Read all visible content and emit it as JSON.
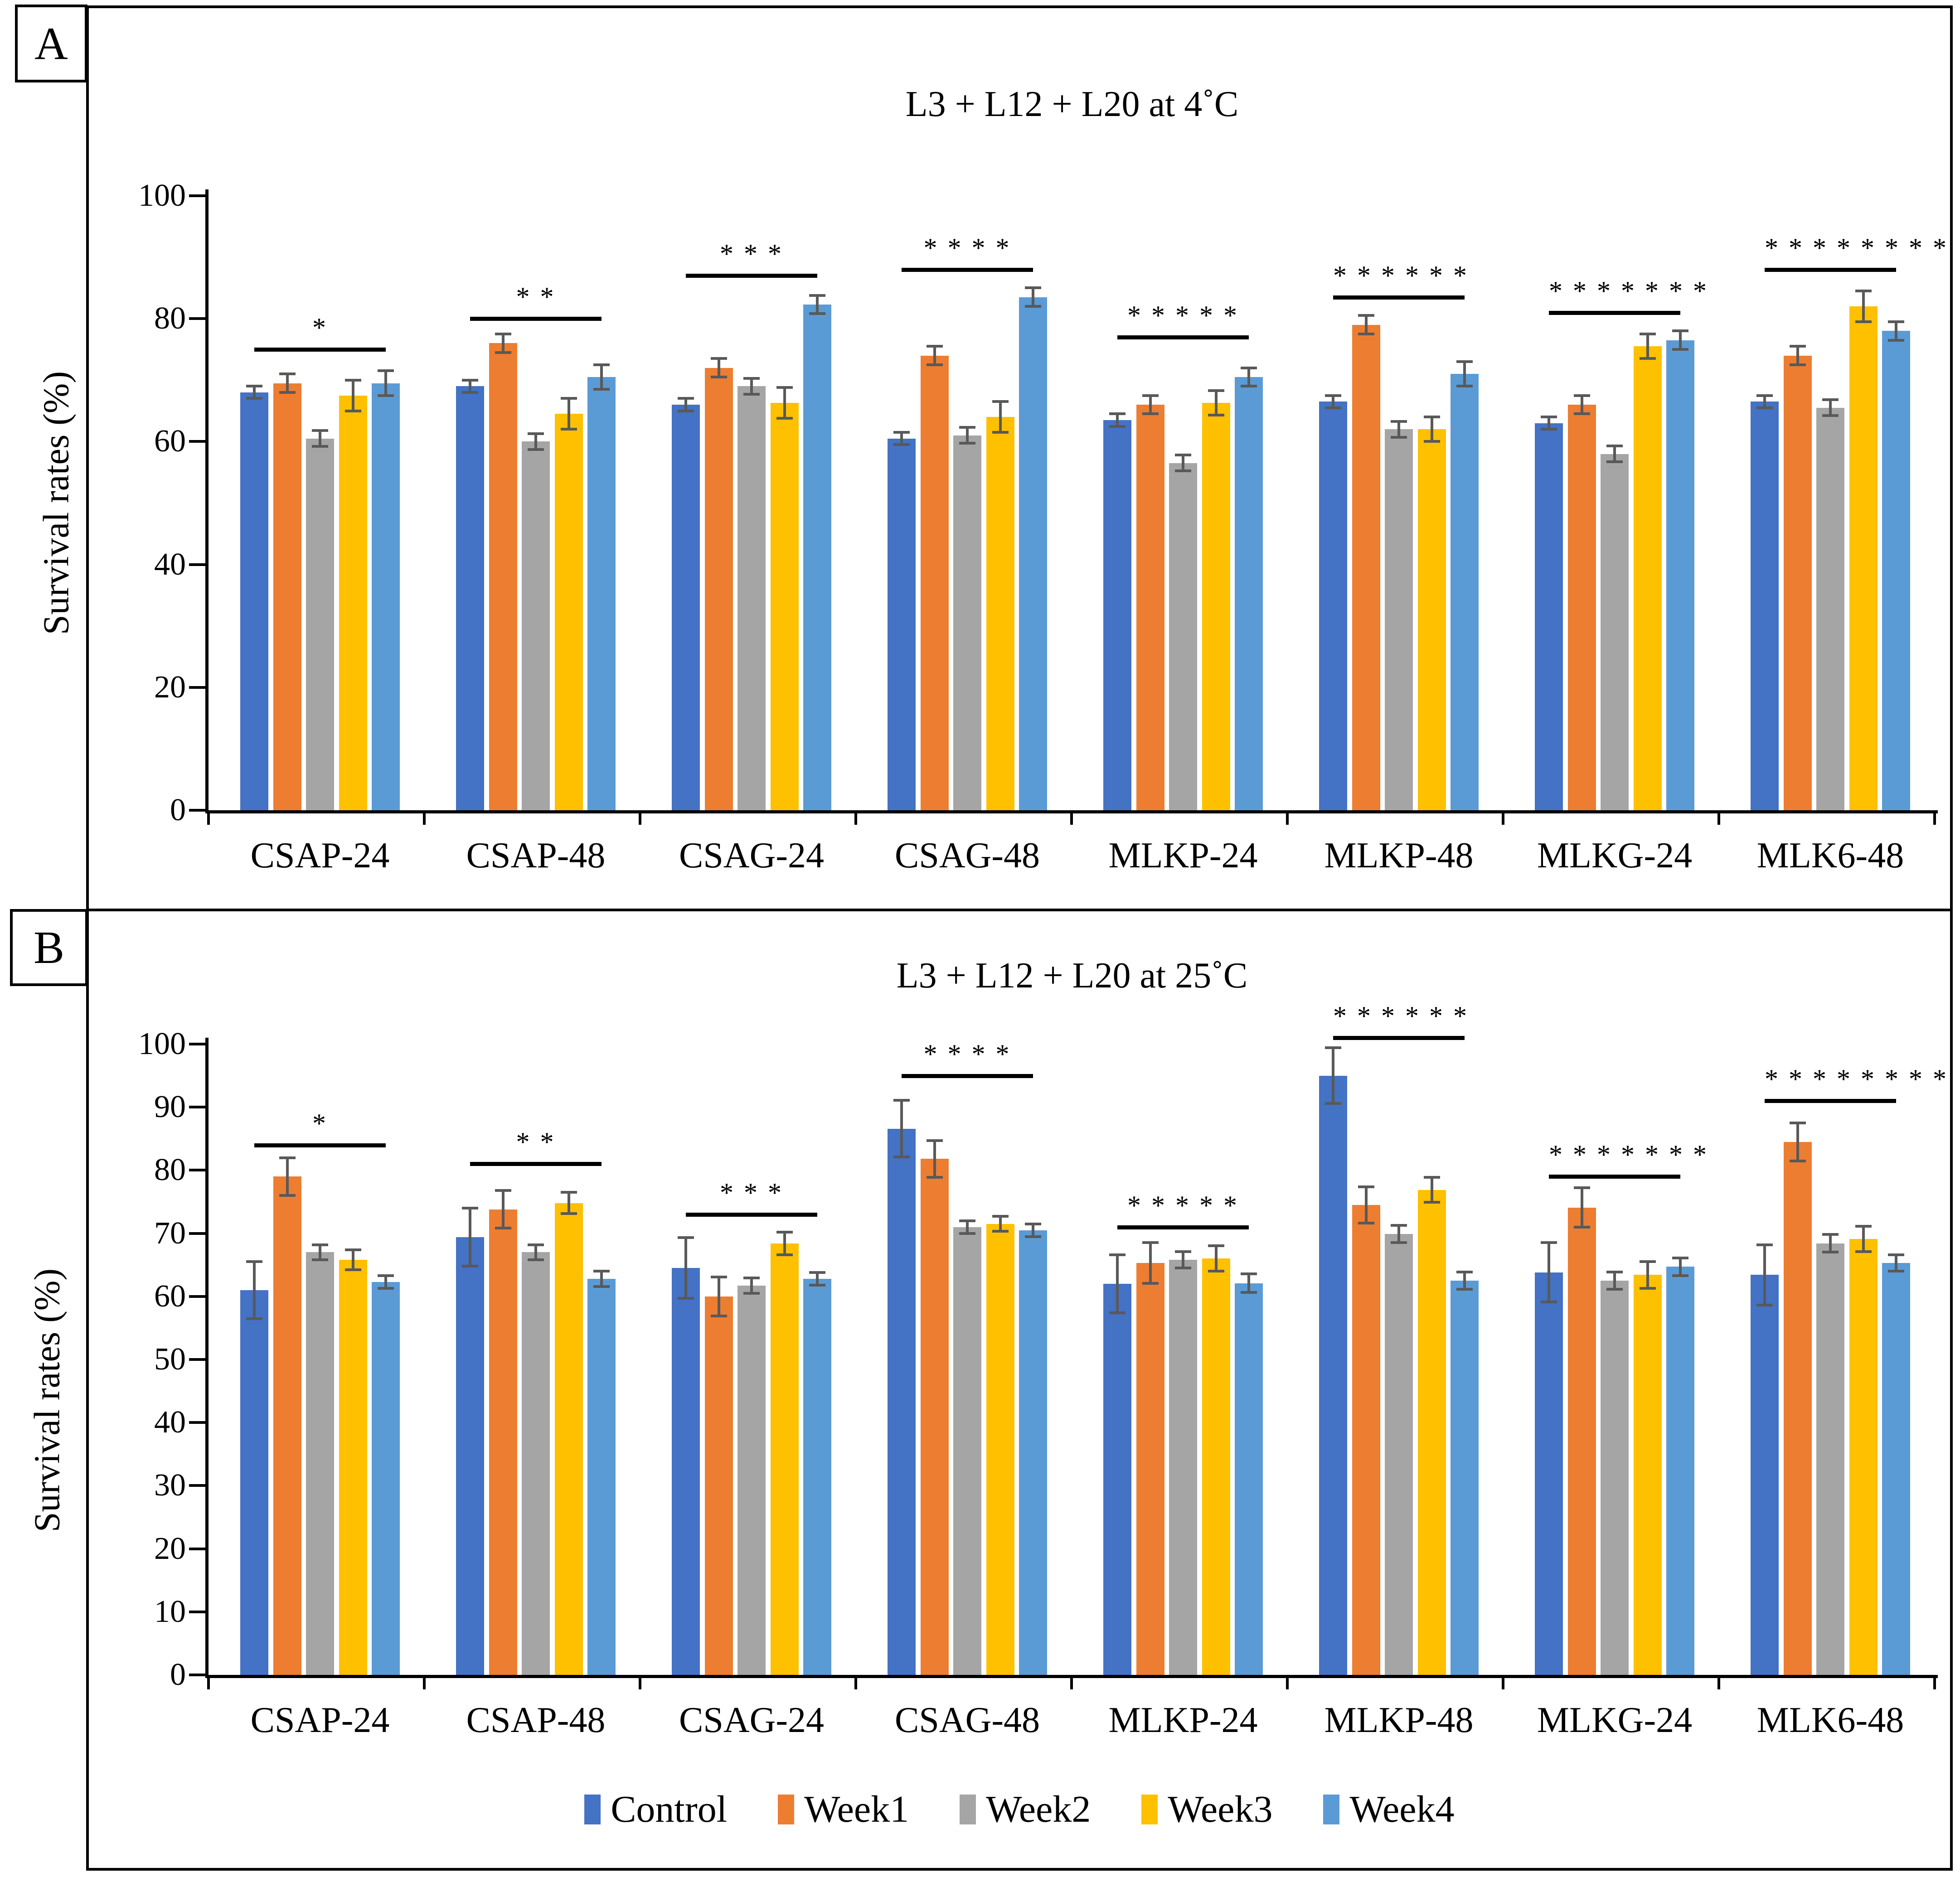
{
  "figure": {
    "panel_a_label": "A",
    "panel_b_label": "B"
  },
  "legend": {
    "items": [
      {
        "label": "Control",
        "color": "#4472C4"
      },
      {
        "label": "Week1",
        "color": "#ED7D31"
      },
      {
        "label": "Week2",
        "color": "#A5A5A5"
      },
      {
        "label": "Week3",
        "color": "#FFC000"
      },
      {
        "label": "Week4",
        "color": "#5B9BD5"
      }
    ]
  },
  "colors": {
    "control": "#4472C4",
    "week1": "#ED7D31",
    "week2": "#A5A5A5",
    "week3": "#FFC000",
    "week4": "#5B9BD5",
    "error_bar": "#595959",
    "axis": "#000000"
  },
  "chart_data": [
    {
      "id": "A",
      "panel_label": "A",
      "type": "bar",
      "title": "L3 + L12 + L20 at 4˚C",
      "ylabel": "Survival rates (%)",
      "xlabel": "",
      "ylim": [
        0,
        100
      ],
      "ytick_step": 20,
      "grid": false,
      "legend_position": "none",
      "categories": [
        "CSAP-24",
        "CSAP-48",
        "CSAG-24",
        "CSAG-48",
        "MLKP-24",
        "MLKP-48",
        "MLKG-24",
        "MLK6-48"
      ],
      "series": [
        {
          "name": "Control",
          "color": "#4472C4",
          "values": [
            68,
            69,
            66,
            60.5,
            63.5,
            66.5,
            63,
            66.5
          ],
          "errors": [
            1,
            1,
            1,
            1,
            1,
            1,
            1,
            1
          ]
        },
        {
          "name": "Week1",
          "color": "#ED7D31",
          "values": [
            69.5,
            76,
            72,
            74,
            66,
            79,
            66,
            74
          ],
          "errors": [
            1.5,
            1.5,
            1.5,
            1.5,
            1.5,
            1.5,
            1.5,
            1.5
          ]
        },
        {
          "name": "Week2",
          "color": "#A5A5A5",
          "values": [
            60.5,
            60,
            69,
            61,
            56.5,
            62,
            58,
            65.5
          ],
          "errors": [
            1.3,
            1.3,
            1.3,
            1.3,
            1.3,
            1.3,
            1.3,
            1.3
          ]
        },
        {
          "name": "Week3",
          "color": "#FFC000",
          "values": [
            67.5,
            64.5,
            66.3,
            64,
            66.3,
            62,
            75.5,
            82
          ],
          "errors": [
            2.5,
            2.5,
            2.5,
            2.5,
            2,
            2,
            2,
            2.5
          ]
        },
        {
          "name": "Week4",
          "color": "#5B9BD5",
          "values": [
            69.5,
            70.5,
            82.3,
            83.5,
            70.5,
            71,
            76.5,
            78
          ],
          "errors": [
            2,
            2,
            1.5,
            1.5,
            1.5,
            2,
            1.5,
            1.5
          ]
        }
      ],
      "significance": [
        {
          "category": "CSAP-24",
          "stars": "*",
          "line_y": 75
        },
        {
          "category": "CSAP-48",
          "stars": "* *",
          "line_y": 80
        },
        {
          "category": "CSAG-24",
          "stars": "* * *",
          "line_y": 87
        },
        {
          "category": "CSAG-48",
          "stars": "* * * *",
          "line_y": 88
        },
        {
          "category": "MLKP-24",
          "stars": "* * * * *",
          "line_y": 77
        },
        {
          "category": "MLKP-48",
          "stars": "* * * * * *",
          "line_y": 83.5
        },
        {
          "category": "MLKG-24",
          "stars": "* * * * * * *",
          "line_y": 81
        },
        {
          "category": "MLK6-48",
          "stars": "* * * * * * * *",
          "line_y": 88
        }
      ]
    },
    {
      "id": "B",
      "panel_label": "B",
      "type": "bar",
      "title": "L3 + L12 + L20 at 25˚C",
      "ylabel": "Survival rates (%)",
      "xlabel": "",
      "ylim": [
        0,
        100
      ],
      "ytick_step": 10,
      "grid": false,
      "legend_position": "bottom",
      "categories": [
        "CSAP-24",
        "CSAP-48",
        "CSAG-24",
        "CSAG-48",
        "MLKP-24",
        "MLKP-48",
        "MLKG-24",
        "MLK6-48"
      ],
      "series": [
        {
          "name": "Control",
          "color": "#4472C4",
          "values": [
            61,
            69.4,
            64.5,
            86.6,
            62,
            95,
            63.8,
            63.4
          ],
          "errors": [
            4.5,
            4.6,
            4.8,
            4.5,
            4.6,
            4.4,
            4.7,
            4.8
          ]
        },
        {
          "name": "Week1",
          "color": "#ED7D31",
          "values": [
            79,
            73.8,
            60,
            81.8,
            65.3,
            74.5,
            74.1,
            84.5
          ],
          "errors": [
            3,
            3,
            3.1,
            2.9,
            3.2,
            2.9,
            3.1,
            3
          ]
        },
        {
          "name": "Week2",
          "color": "#A5A5A5",
          "values": [
            67,
            67,
            61.7,
            71,
            65.8,
            69.9,
            62.5,
            68.4
          ],
          "errors": [
            1.2,
            1.2,
            1.2,
            1,
            1.3,
            1.4,
            1.4,
            1.4
          ]
        },
        {
          "name": "Week3",
          "color": "#FFC000",
          "values": [
            65.8,
            74.8,
            68.4,
            71.5,
            66,
            76.9,
            63.4,
            69.1
          ],
          "errors": [
            1.6,
            1.7,
            1.8,
            1.2,
            2,
            2,
            2.1,
            2
          ]
        },
        {
          "name": "Week4",
          "color": "#5B9BD5",
          "values": [
            62.3,
            62.8,
            62.8,
            70.5,
            62.1,
            62.5,
            64.7,
            65.3
          ],
          "errors": [
            1,
            1.2,
            1,
            1,
            1.5,
            1.4,
            1.4,
            1.3
          ]
        }
      ],
      "significance": [
        {
          "category": "CSAP-24",
          "stars": "*",
          "line_y": 84
        },
        {
          "category": "CSAP-48",
          "stars": "* *",
          "line_y": 81
        },
        {
          "category": "CSAG-24",
          "stars": "* * *",
          "line_y": 73
        },
        {
          "category": "CSAG-48",
          "stars": "* * * *",
          "line_y": 95
        },
        {
          "category": "MLKP-24",
          "stars": "* * * * *",
          "line_y": 71
        },
        {
          "category": "MLKP-48",
          "stars": "* * * * * *",
          "line_y": 101
        },
        {
          "category": "MLKG-24",
          "stars": "* * * * * * *",
          "line_y": 79
        },
        {
          "category": "MLK6-48",
          "stars": "* * * * * * * *",
          "line_y": 91
        }
      ]
    }
  ]
}
